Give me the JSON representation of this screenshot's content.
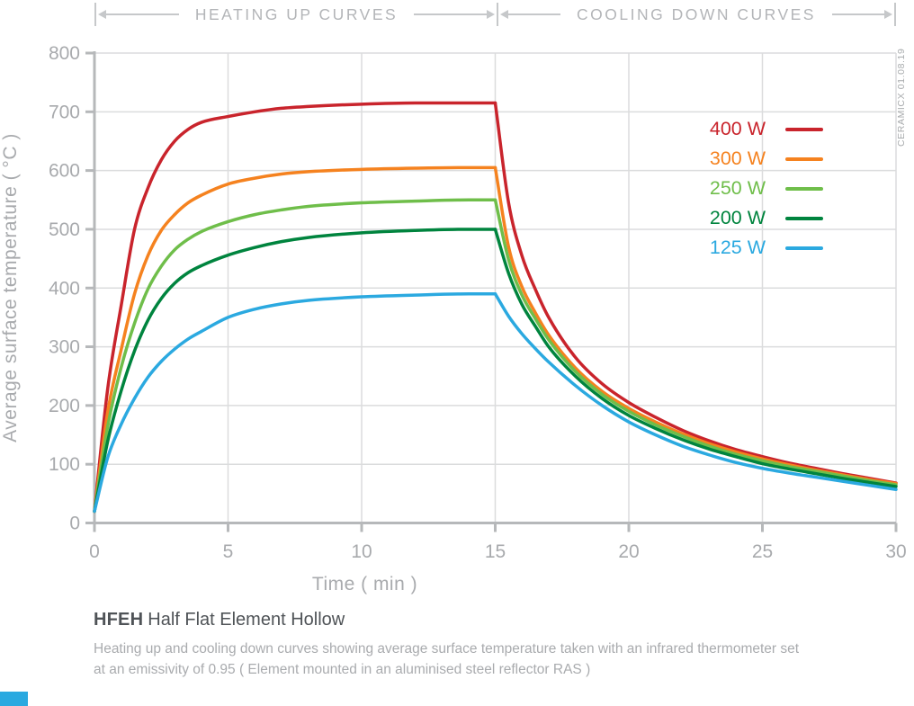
{
  "watermark": "CERAMICX 01.08.19",
  "footer": {
    "product_code": "HFEH",
    "product_name": "Half Flat Element Hollow",
    "description_line1": "Heating up and cooling down curves showing average surface temperature taken with an infrared thermometer set",
    "description_line2": "at an emissivity of 0.95  ( Element mounted in an aluminised steel reflector RAS )"
  },
  "colors": {
    "grid": "#dbdcdd",
    "axis": "#b6b8ba",
    "tick_label": "#a8aaad",
    "header_line": "#c6c8ca",
    "header_text": "#b3b5b8",
    "title_text": "#4f5357",
    "description_text": "#a9abae",
    "brand_blue": "#2aa9e0"
  },
  "chart_data": {
    "type": "line",
    "title": "HFEH Half Flat Element Hollow",
    "xlabel": "Time ( min )",
    "ylabel": "Average surface temperature ( °C )",
    "xlim": [
      0,
      30
    ],
    "ylim": [
      0,
      800
    ],
    "xticks": [
      0,
      5,
      10,
      15,
      20,
      25,
      30
    ],
    "yticks": [
      0,
      100,
      200,
      300,
      400,
      500,
      600,
      700,
      800
    ],
    "grid": true,
    "legend_position": "upper right",
    "phase_split_x": 15,
    "phases": [
      {
        "label": "HEATING UP CURVES",
        "x_range": [
          0,
          15
        ]
      },
      {
        "label": "COOLING DOWN CURVES",
        "x_range": [
          15,
          30
        ]
      }
    ],
    "x": [
      0,
      0.5,
      1,
      1.5,
      2,
      2.5,
      3,
      3.5,
      4,
      5,
      6,
      7,
      8,
      10,
      12,
      14,
      15,
      15.5,
      16,
      16.5,
      17,
      18,
      19,
      20,
      21,
      22,
      23,
      24,
      25,
      26,
      27,
      28,
      29,
      30
    ],
    "series": [
      {
        "name": "400 W",
        "color": "#c9242c",
        "plateau_c": 715,
        "values": [
          20,
          230,
          370,
          500,
          570,
          618,
          650,
          670,
          682,
          692,
          700,
          706,
          709,
          713,
          715,
          715,
          715,
          545,
          455,
          398,
          350,
          282,
          237,
          205,
          180,
          158,
          140,
          125,
          113,
          102,
          93,
          84,
          76,
          68
        ]
      },
      {
        "name": "300 W",
        "color": "#f5821f",
        "plateau_c": 605,
        "values": [
          20,
          190,
          295,
          390,
          455,
          498,
          525,
          545,
          558,
          577,
          587,
          594,
          598,
          602,
          604,
          605,
          605,
          470,
          402,
          358,
          320,
          264,
          224,
          195,
          172,
          152,
          135,
          121,
          109,
          99,
          90,
          82,
          74,
          67
        ]
      },
      {
        "name": "250 W",
        "color": "#6fbe4a",
        "plateau_c": 550,
        "values": [
          20,
          165,
          265,
          340,
          398,
          437,
          465,
          483,
          496,
          513,
          525,
          533,
          539,
          545,
          548,
          550,
          550,
          448,
          388,
          348,
          312,
          258,
          219,
          190,
          167,
          148,
          131,
          117,
          106,
          96,
          88,
          80,
          72,
          65
        ]
      },
      {
        "name": "200 W",
        "color": "#00843e",
        "plateau_c": 500,
        "values": [
          20,
          140,
          225,
          293,
          345,
          382,
          408,
          426,
          438,
          456,
          469,
          479,
          486,
          494,
          498,
          500,
          500,
          425,
          372,
          335,
          300,
          250,
          212,
          183,
          161,
          142,
          126,
          113,
          101,
          92,
          84,
          76,
          69,
          62
        ]
      },
      {
        "name": "125 W",
        "color": "#2ba9e0",
        "plateau_c": 390,
        "values": [
          20,
          112,
          168,
          212,
          248,
          275,
          296,
          313,
          326,
          350,
          364,
          373,
          379,
          385,
          388,
          390,
          390,
          352,
          322,
          297,
          274,
          234,
          200,
          172,
          150,
          131,
          116,
          103,
          93,
          85,
          78,
          71,
          64,
          57
        ]
      }
    ]
  }
}
